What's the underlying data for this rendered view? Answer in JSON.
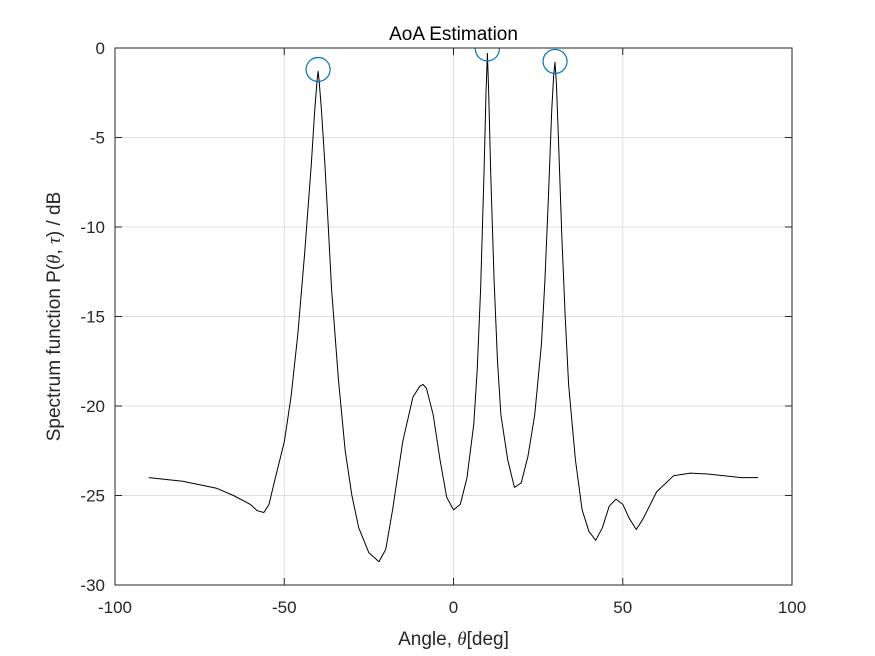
{
  "chart_data": {
    "type": "line",
    "title": "AoA Estimation",
    "xlabel": {
      "pre": "Angle, ",
      "sym": "θ",
      "post": "[deg]"
    },
    "ylabel": {
      "p1": "Spectrum function P(",
      "s1": "θ",
      "p2": ", ",
      "s2": "τ",
      "p3": ")  / dB"
    },
    "xlim": [
      -100,
      100
    ],
    "ylim": [
      -30,
      0
    ],
    "xticks": [
      -100,
      -50,
      0,
      50,
      100
    ],
    "yticks": [
      0,
      -5,
      -10,
      -15,
      -20,
      -25,
      -30
    ],
    "grid": true,
    "series": [
      {
        "style": "line",
        "color": "#000000",
        "x": [
          -90,
          -80,
          -70,
          -65,
          -60,
          -58,
          -56,
          -54.5,
          -53,
          -50,
          -48,
          -46,
          -44,
          -42,
          -41,
          -40.3,
          -40,
          -39.7,
          -39,
          -38,
          -37,
          -36,
          -34,
          -32,
          -30,
          -28,
          -25,
          -22,
          -20,
          -18,
          -15,
          -12,
          -10,
          -9,
          -8,
          -6,
          -4,
          -2,
          0,
          2,
          4,
          6,
          7,
          8,
          9,
          9.6,
          10,
          10.4,
          11,
          12,
          13,
          14,
          16,
          18,
          20,
          22,
          24,
          26,
          27,
          28,
          29,
          29.6,
          30,
          30.4,
          31,
          32,
          33,
          34,
          36,
          38,
          40,
          42,
          44,
          46,
          48,
          50,
          52,
          54,
          56,
          60,
          65,
          70,
          75,
          80,
          85,
          90
        ],
        "y": [
          -24.0,
          -24.2,
          -24.6,
          -25.0,
          -25.5,
          -25.85,
          -25.95,
          -25.5,
          -24.3,
          -22.0,
          -19.5,
          -16.0,
          -11.5,
          -6.5,
          -3.5,
          -1.8,
          -1.3,
          -1.8,
          -3.5,
          -6.5,
          -10.0,
          -13.5,
          -18.5,
          -22.5,
          -25.0,
          -26.8,
          -28.2,
          -28.7,
          -28.0,
          -25.8,
          -22.0,
          -19.5,
          -18.9,
          -18.8,
          -19.0,
          -20.5,
          -23.0,
          -25.1,
          -25.8,
          -25.5,
          -24.0,
          -21.0,
          -18.0,
          -13.5,
          -7.0,
          -2.5,
          -0.3,
          -2.5,
          -7.0,
          -13.0,
          -17.5,
          -20.5,
          -23.0,
          -24.55,
          -24.3,
          -22.8,
          -20.5,
          -16.5,
          -13.0,
          -8.5,
          -3.5,
          -1.5,
          -0.8,
          -2.0,
          -5.0,
          -10.5,
          -15.0,
          -18.8,
          -23.0,
          -25.8,
          -27.0,
          -27.5,
          -26.8,
          -25.6,
          -25.2,
          -25.5,
          -26.3,
          -26.9,
          -26.3,
          -24.8,
          -23.9,
          -23.75,
          -23.8,
          -23.9,
          -24.0,
          -24.0
        ]
      },
      {
        "style": "circle-markers",
        "color": "#0072BD",
        "x": [
          -40,
          10,
          30
        ],
        "y": [
          -1.2,
          -0.05,
          -0.75
        ]
      }
    ]
  }
}
